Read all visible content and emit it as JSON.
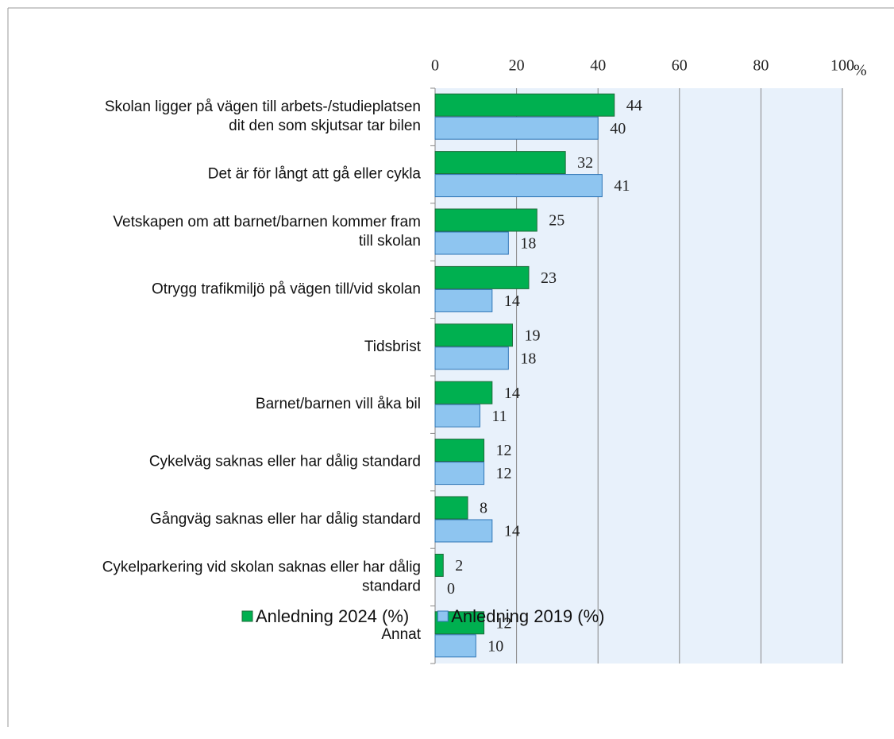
{
  "chart_data": {
    "type": "bar",
    "orientation": "horizontal",
    "categories": [
      "Skolan ligger på vägen till arbets-/studieplatsen\ndit den som skjutsar tar bilen",
      "Det är för långt att gå eller cykla",
      "Vetskapen om att barnet/barnen kommer fram\ntill skolan",
      "Otrygg trafikmiljö på vägen till/vid skolan",
      "Tidsbrist",
      "Barnet/barnen vill åka bil",
      "Cykelväg saknas eller har dålig standard",
      "Gångväg saknas eller har dålig standard",
      "Cykelparkering vid skolan saknas eller har dålig\nstandard",
      "Annat"
    ],
    "series": [
      {
        "name": "Anledning 2024 (%)",
        "color": "#00b050",
        "values": [
          44,
          32,
          25,
          23,
          19,
          14,
          12,
          8,
          2,
          12
        ]
      },
      {
        "name": "Anledning 2019 (%)",
        "color": "#8ec5f0",
        "values": [
          40,
          41,
          18,
          14,
          18,
          11,
          12,
          14,
          0,
          10
        ]
      }
    ],
    "x_axis_unit": "%",
    "xlim": [
      0,
      100
    ],
    "xticks": [
      0,
      20,
      40,
      60,
      80,
      100
    ],
    "grid": true,
    "legend": "bottom"
  }
}
